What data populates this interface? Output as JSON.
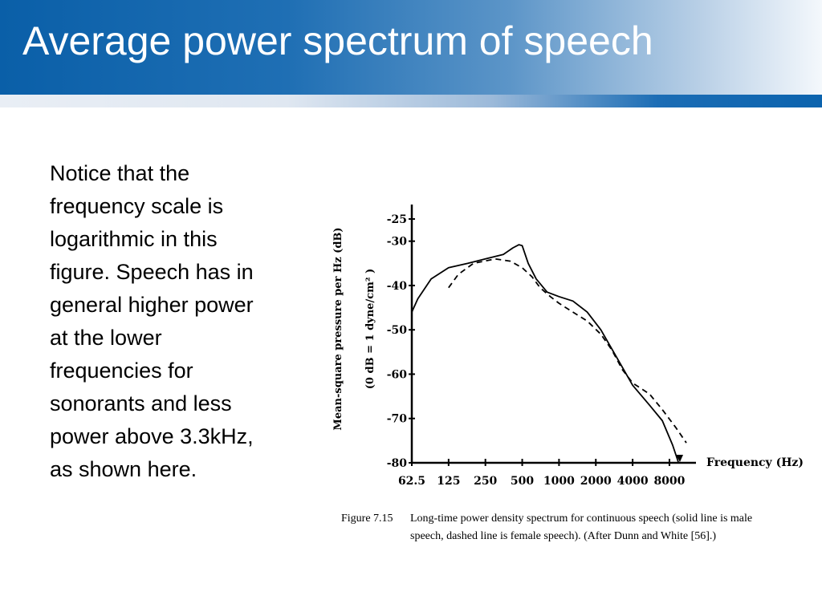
{
  "slide": {
    "title": "Average power spectrum of speech",
    "body_text": "Notice that the frequency scale is logarithmic in this figure. Speech  has in general higher power at the lower frequencies for sonorants and less power above 3.3kHz, as shown here."
  },
  "colors": {
    "header_dark": "#0a5fa8",
    "title_text": "#ffffff",
    "curve": "#000000"
  },
  "chart_data": {
    "type": "line",
    "xscale": "log",
    "x_tick_labels": [
      "62.5",
      "125",
      "250",
      "500",
      "1000",
      "2000",
      "4000",
      "8000"
    ],
    "x_tick_values": [
      62.5,
      125,
      250,
      500,
      1000,
      2000,
      4000,
      8000
    ],
    "y_tick_labels": [
      "-25",
      "-30",
      "-40",
      "-50",
      "-60",
      "-70",
      "-80"
    ],
    "y_tick_values": [
      -25,
      -30,
      -40,
      -50,
      -60,
      -70,
      -80
    ],
    "xlabel": "Frequency (Hz)",
    "ylabel_line1": "Mean-square pressure per Hz (dB)",
    "ylabel_line2": "(0 dB = 1 dyne/cm² )",
    "xlim": [
      62.5,
      11000
    ],
    "ylim": [
      -80,
      -23
    ],
    "grid": false,
    "series": [
      {
        "style": "solid",
        "x": [
          62.5,
          70,
          90,
          125,
          180,
          250,
          350,
          420,
          470,
          500,
          560,
          650,
          800,
          1000,
          1300,
          1700,
          2200,
          3000,
          4000,
          5500,
          7000,
          8500,
          9500
        ],
        "y": [
          -46,
          -43,
          -38.5,
          -36,
          -35,
          -34,
          -33,
          -31.5,
          -30.8,
          -31,
          -35,
          -38.5,
          -41.5,
          -42.5,
          -43.5,
          -46,
          -50,
          -56.5,
          -62.5,
          -67,
          -70.5,
          -76,
          -80
        ]
      },
      {
        "style": "dashed",
        "x": [
          125,
          150,
          200,
          300,
          400,
          500,
          600,
          700,
          850,
          1000,
          1300,
          1700,
          2200,
          2700,
          3300,
          4000,
          5500,
          7000,
          9000,
          11000
        ],
        "y": [
          -40.5,
          -37.5,
          -35,
          -34,
          -34.5,
          -36,
          -38,
          -40.5,
          -42.5,
          -44,
          -46,
          -48,
          -51,
          -54.5,
          -59,
          -62,
          -64.5,
          -68,
          -72,
          -75.5
        ]
      }
    ]
  },
  "caption": {
    "label": "Figure 7.15",
    "line1": "Long-time power density spectrum for continuous speech (solid line is male",
    "line2": "speech, dashed line is female speech). (After Dunn and White [56].)"
  }
}
